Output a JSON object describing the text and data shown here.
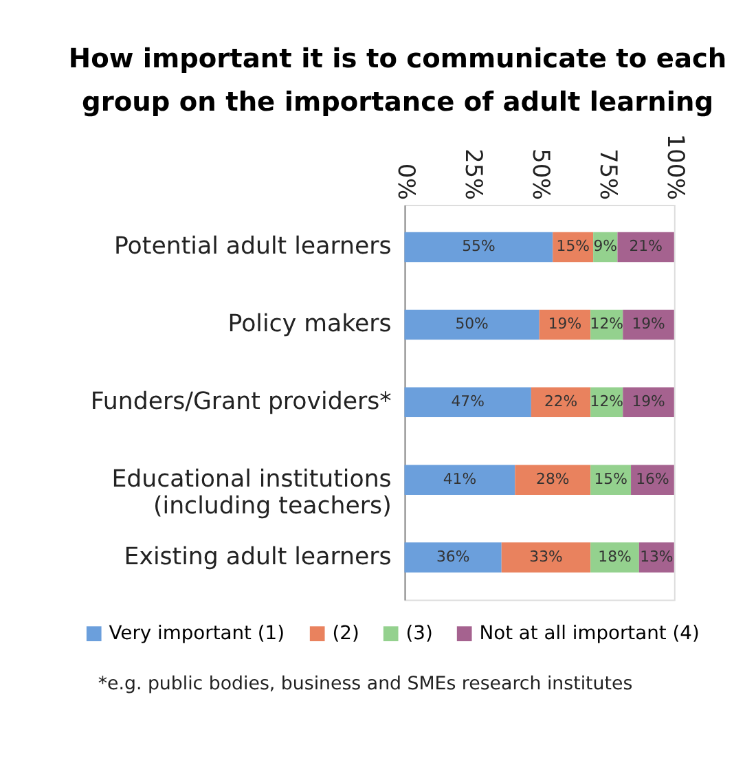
{
  "chart_data": {
    "type": "bar",
    "orientation": "horizontal",
    "stacked": true,
    "title": "How important it is to communicate to each\ngroup on the importance of adult learning",
    "categories": [
      "Potential adult learners",
      "Policy makers",
      "Funders/Grant providers*",
      "Educational institutions\n(including teachers)",
      "Existing adult learners"
    ],
    "series": [
      {
        "name": "Very important (1)",
        "color": "#6b9fdc",
        "values": [
          55,
          50,
          47,
          41,
          36
        ],
        "value_labels": [
          "55%",
          "50%",
          "47%",
          "41%",
          "36%"
        ]
      },
      {
        "name": "(2)",
        "color": "#e9825e",
        "values": [
          15,
          19,
          22,
          28,
          33
        ],
        "value_labels": [
          "15%",
          "19%",
          "22%",
          "28%",
          "33%"
        ]
      },
      {
        "name": "(3)",
        "color": "#94d18e",
        "values": [
          9,
          12,
          12,
          15,
          18
        ],
        "value_labels": [
          "9%",
          "12%",
          "12%",
          "15%",
          "18%"
        ]
      },
      {
        "name": "Not at all important (4)",
        "color": "#a5628f",
        "values": [
          21,
          19,
          19,
          16,
          13
        ],
        "value_labels": [
          "21%",
          "19%",
          "19%",
          "16%",
          "13%"
        ]
      }
    ],
    "xlim": [
      0,
      100
    ],
    "xticks": [
      {
        "value": 0,
        "label": "0%"
      },
      {
        "value": 25,
        "label": "25%"
      },
      {
        "value": 50,
        "label": "50%"
      },
      {
        "value": 75,
        "label": "75%"
      },
      {
        "value": 100,
        "label": "100%"
      }
    ],
    "grid": false,
    "legend": "bottom",
    "annotations": [
      "*e.g. public bodies, business and SMEs research institutes"
    ]
  }
}
